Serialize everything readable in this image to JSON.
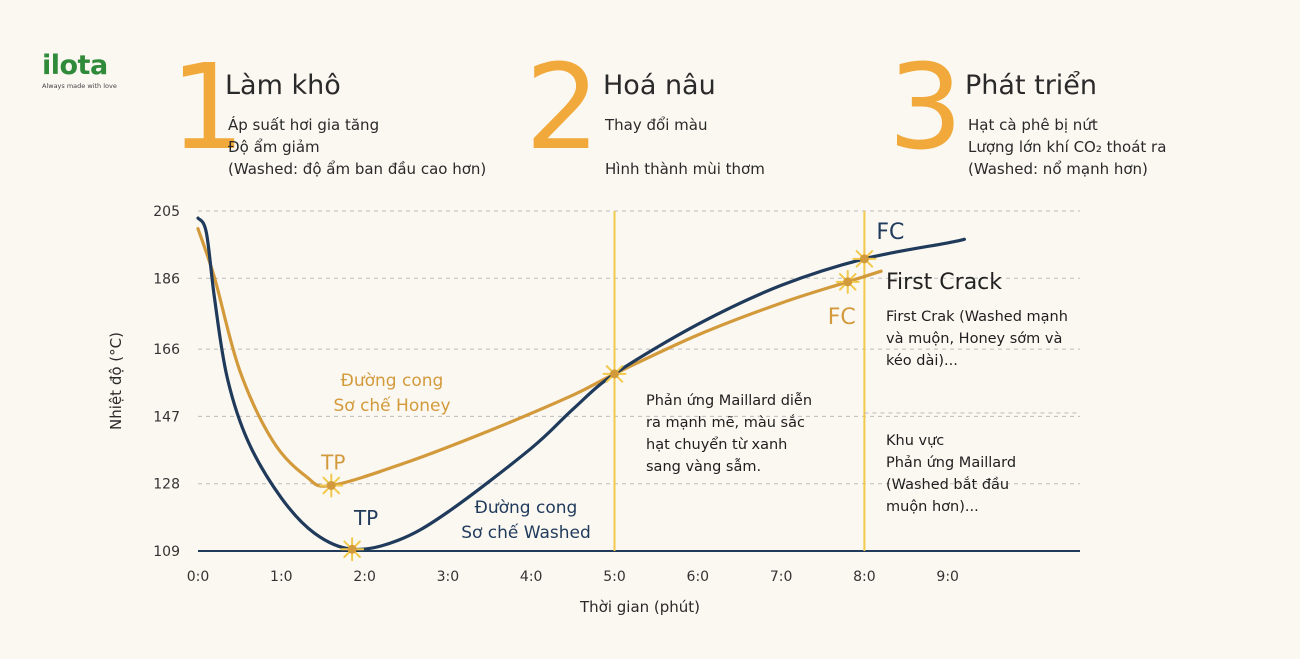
{
  "logo": {
    "wordmark": "ilota",
    "tagline": "Always made with love"
  },
  "stages": [
    {
      "number": "1",
      "title": "Làm khô",
      "lines": [
        "Áp suất hơi gia tăng",
        "Độ ẩm giảm",
        "(Washed: độ ẩm ban đầu cao hơn)"
      ]
    },
    {
      "number": "2",
      "title": "Hoá nâu",
      "lines": [
        "Thay đổi màu",
        "",
        "Hình thành mùi thơm"
      ]
    },
    {
      "number": "3",
      "title": "Phát triển",
      "lines": [
        "Hạt cà phê bị nứt",
        "Lượng lớn khí CO₂ thoát ra",
        "(Washed: nổ mạnh hơn)"
      ]
    }
  ],
  "colors": {
    "honey": "#d39a3c",
    "washed": "#1f3a5a",
    "accent": "#f2c94c",
    "stage_number": "#f2a93b",
    "grid": "#bdbdbd"
  },
  "chart_data": {
    "type": "line",
    "xlabel": "Thời gian (phút)",
    "ylabel": "Nhiệt độ (°C)",
    "x_ticks": [
      "0:0",
      "1:0",
      "2:0",
      "3:0",
      "4:0",
      "5:0",
      "6:0",
      "7:0",
      "8:0",
      "9:0"
    ],
    "y_ticks": [
      109,
      128,
      147,
      166,
      186,
      205
    ],
    "xlim": [
      0,
      9.6
    ],
    "ylim": [
      109,
      205
    ],
    "phase_lines_x": [
      5.0,
      8.0
    ],
    "series": [
      {
        "name": "Đường cong Sơ chế Honey",
        "label_lines": [
          "Đường cong",
          "Sơ chế Honey"
        ],
        "color": "#d39a3c",
        "points": [
          [
            0,
            200
          ],
          [
            0.2,
            186
          ],
          [
            0.5,
            160
          ],
          [
            0.9,
            140
          ],
          [
            1.3,
            130
          ],
          [
            1.6,
            127.5
          ],
          [
            2.5,
            134
          ],
          [
            3.5,
            143
          ],
          [
            4.5,
            153
          ],
          [
            5.0,
            159
          ],
          [
            6.0,
            170
          ],
          [
            7.0,
            179
          ],
          [
            7.8,
            185
          ],
          [
            8.2,
            188
          ]
        ],
        "tp": {
          "label": "TP",
          "x": 1.6,
          "y": 127.5
        },
        "fc": {
          "label": "FC",
          "x": 7.8,
          "y": 185
        }
      },
      {
        "name": "Đường cong Sơ chế Washed",
        "label_lines": [
          "Đường cong",
          "Sơ chế Washed"
        ],
        "color": "#1f3a5a",
        "points": [
          [
            0,
            203
          ],
          [
            0.1,
            199
          ],
          [
            0.2,
            180
          ],
          [
            0.35,
            158
          ],
          [
            0.6,
            140
          ],
          [
            1.0,
            124
          ],
          [
            1.4,
            114
          ],
          [
            1.85,
            109.5
          ],
          [
            2.4,
            112
          ],
          [
            3.0,
            120
          ],
          [
            4.0,
            138
          ],
          [
            4.5,
            149
          ],
          [
            5.0,
            159
          ],
          [
            6.0,
            173
          ],
          [
            7.0,
            184
          ],
          [
            8.0,
            191.5
          ],
          [
            9.0,
            196
          ],
          [
            9.2,
            197
          ]
        ],
        "tp": {
          "label": "TP",
          "x": 1.85,
          "y": 109.5
        },
        "fc": {
          "label": "FC",
          "x": 8.0,
          "y": 191.5
        }
      }
    ],
    "annotations": {
      "first_crack_title": "First Crack",
      "first_crack_note": [
        "First Crak (Washed mạnh",
        "và muộn, Honey sớm và",
        "kéo dài)..."
      ],
      "maillard_note": [
        "Phản ứng Maillard diễn",
        "ra mạnh mẽ, màu sắc",
        "hạt chuyển từ xanh",
        "sang vàng sẫm."
      ],
      "zone_note": [
        "Khu vực",
        "Phản ứng Maillard",
        "(Washed bắt đầu",
        "muộn hơn)..."
      ]
    }
  }
}
